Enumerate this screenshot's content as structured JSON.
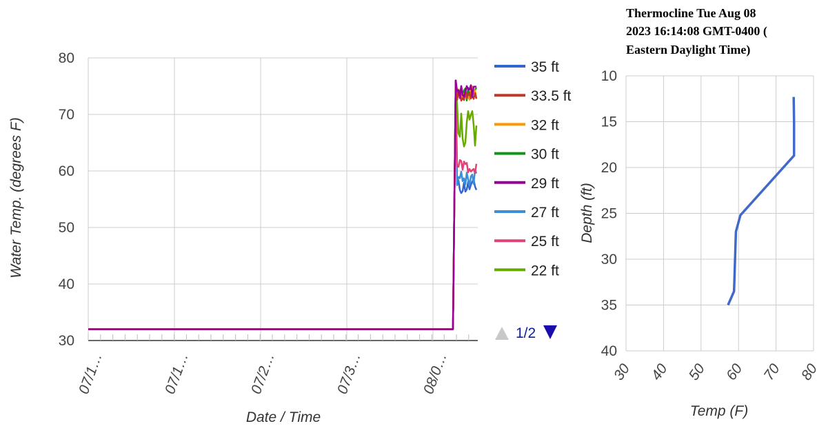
{
  "chart_data": [
    {
      "type": "line",
      "title": "",
      "xlabel": "Date / Time",
      "ylabel": "Water Temp. (degrees F)",
      "ylim": [
        30,
        80
      ],
      "yticks": [
        "30",
        "40",
        "50",
        "60",
        "70",
        "80"
      ],
      "xticks": [
        "07/1…",
        "07/1…",
        "07/2…",
        "07/3…",
        "08/0…"
      ],
      "grid": true,
      "legend": {
        "position": "right",
        "pagination": "1/2",
        "prev_icon": "triangle-up-icon",
        "next_icon": "triangle-down-icon",
        "colors": {
          "active": "#1a0dab",
          "inactive": "#c8c8c8"
        }
      },
      "baseline_value": 32,
      "series": [
        {
          "name": "35 ft",
          "color": "#3366cc",
          "end_value": 57.2
        },
        {
          "name": "33.5 ft",
          "color": "#c0392b",
          "end_value": 73.5
        },
        {
          "name": "32 ft",
          "color": "#ff9900",
          "end_value": 73.8
        },
        {
          "name": "30 ft",
          "color": "#109618",
          "end_value": 73.6
        },
        {
          "name": "29 ft",
          "color": "#990099",
          "end_value": 74.0
        },
        {
          "name": "27 ft",
          "color": "#3b8fd9",
          "end_value": 58.8
        },
        {
          "name": "25 ft",
          "color": "#dd4477",
          "end_value": 60.8
        },
        {
          "name": "22 ft",
          "color": "#66aa00",
          "end_value": 67.5
        }
      ]
    },
    {
      "type": "line",
      "title": [
        "Thermocline Tue Aug 08",
        "2023 16:14:08 GMT-0400 (",
        "Eastern Daylight Time)"
      ],
      "xlabel": "Temp (F)",
      "ylabel": "Depth (ft)",
      "xlim": [
        30,
        80
      ],
      "ylim": [
        10,
        40
      ],
      "y_inverted": true,
      "xticks": [
        "30",
        "40",
        "50",
        "60",
        "70",
        "80"
      ],
      "yticks": [
        "10",
        "15",
        "20",
        "25",
        "30",
        "35",
        "40"
      ],
      "grid": true,
      "series": [
        {
          "color": "#4169c8",
          "points": [
            {
              "temp": 74.7,
              "depth": 12.3
            },
            {
              "temp": 74.8,
              "depth": 15.0
            },
            {
              "temp": 74.8,
              "depth": 18.7
            },
            {
              "temp": 60.5,
              "depth": 25.2
            },
            {
              "temp": 59.3,
              "depth": 27.0
            },
            {
              "temp": 58.8,
              "depth": 33.5
            },
            {
              "temp": 57.2,
              "depth": 35.0
            }
          ]
        }
      ]
    }
  ]
}
